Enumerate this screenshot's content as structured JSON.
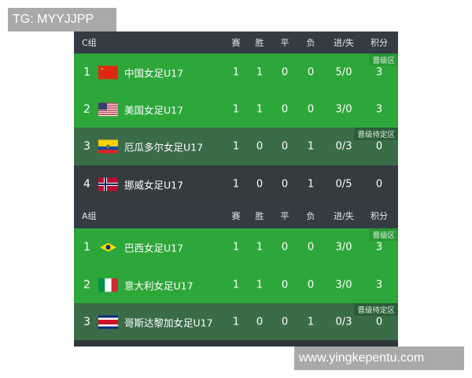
{
  "watermarks": {
    "top_left": "TG: MYYJJPP",
    "bottom_right": "www.yingkepentu.com"
  },
  "columns": [
    "赛",
    "胜",
    "平",
    "负",
    "进/失",
    "积分"
  ],
  "groups": [
    {
      "name": "C组",
      "rows": [
        {
          "rank": "1",
          "flag": "china-flag-icon",
          "team": "中国女足U17",
          "p": "1",
          "w": "1",
          "d": "0",
          "l": "0",
          "gd": "5/0",
          "pts": "3",
          "zone": "晋级区",
          "status": "green"
        },
        {
          "rank": "2",
          "flag": "usa-flag-icon",
          "team": "美国女足U17",
          "p": "1",
          "w": "1",
          "d": "0",
          "l": "0",
          "gd": "3/0",
          "pts": "3",
          "zone": "",
          "status": "green"
        },
        {
          "rank": "3",
          "flag": "ecuador-flag-icon",
          "team": "厄瓜多尔女足U17",
          "p": "1",
          "w": "0",
          "d": "0",
          "l": "1",
          "gd": "0/3",
          "pts": "0",
          "zone": "晋级待定区",
          "status": "pend"
        },
        {
          "rank": "4",
          "flag": "norway-flag-icon",
          "team": "挪威女足U17",
          "p": "1",
          "w": "0",
          "d": "0",
          "l": "1",
          "gd": "0/5",
          "pts": "0",
          "zone": "",
          "status": "dark"
        }
      ]
    },
    {
      "name": "A组",
      "rows": [
        {
          "rank": "1",
          "flag": "brazil-flag-icon",
          "team": "巴西女足U17",
          "p": "1",
          "w": "1",
          "d": "0",
          "l": "0",
          "gd": "3/0",
          "pts": "3",
          "zone": "晋级区",
          "status": "green"
        },
        {
          "rank": "2",
          "flag": "italy-flag-icon",
          "team": "意大利女足U17",
          "p": "1",
          "w": "1",
          "d": "0",
          "l": "0",
          "gd": "3/0",
          "pts": "3",
          "zone": "",
          "status": "green"
        },
        {
          "rank": "3",
          "flag": "costa-rica-flag-icon",
          "team": "哥斯达黎加女足U17",
          "p": "1",
          "w": "0",
          "d": "0",
          "l": "1",
          "gd": "0/3",
          "pts": "0",
          "zone": "晋级待定区",
          "status": "pend"
        }
      ]
    }
  ],
  "colors": {
    "header": "#343c43",
    "qualified": "#2ea73a",
    "pending": "#3b6c48",
    "eliminated": "#343c40"
  }
}
